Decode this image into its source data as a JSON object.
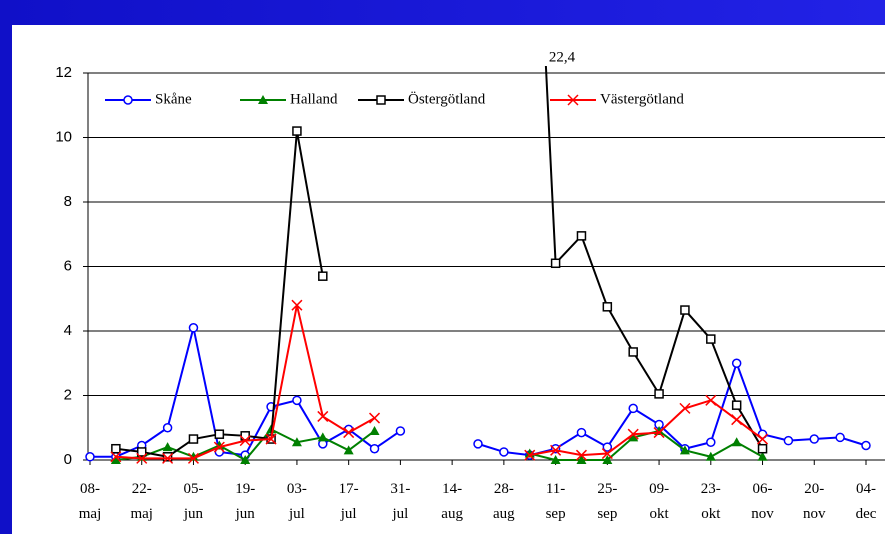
{
  "chart_data": {
    "type": "line",
    "annotation": "22,4",
    "categories": [
      "08-\nmaj",
      null,
      "22-\nmaj",
      null,
      "05-\njun",
      null,
      "19-\njun",
      null,
      "03-\njul",
      null,
      "17-\njul",
      null,
      "31-\njul",
      null,
      "14-\naug",
      null,
      "28-\naug",
      null,
      "11-\nsep",
      null,
      "25-\nsep",
      null,
      "09-\nokt",
      null,
      "23-\nokt",
      null,
      "06-\nnov",
      null,
      "20-\nnov",
      null,
      "04-\ndec"
    ],
    "series": [
      {
        "name": "Skåne",
        "color": "#0000ff",
        "marker": "circle",
        "values": [
          0.1,
          0.1,
          0.45,
          1.0,
          4.1,
          0.25,
          0.15,
          1.65,
          1.85,
          0.5,
          0.95,
          0.35,
          0.9,
          null,
          null,
          0.5,
          0.25,
          0.15,
          0.35,
          0.85,
          0.4,
          1.6,
          1.1,
          0.35,
          0.55,
          3.0,
          0.8,
          0.6,
          0.65,
          0.7,
          0.45
        ]
      },
      {
        "name": "Halland",
        "color": "#008000",
        "marker": "triangle",
        "values": [
          null,
          0.0,
          0.1,
          0.4,
          0.1,
          0.45,
          0.0,
          0.95,
          0.55,
          0.7,
          0.3,
          0.9,
          null,
          null,
          null,
          null,
          null,
          0.2,
          0.0,
          0.0,
          0.0,
          0.7,
          0.9,
          0.3,
          0.1,
          0.55,
          0.1,
          null,
          null,
          null,
          null
        ]
      },
      {
        "name": "Östergötland",
        "color": "#000000",
        "marker": "square",
        "values": [
          null,
          0.35,
          0.25,
          0.1,
          0.65,
          0.8,
          0.75,
          0.65,
          10.2,
          5.7,
          null,
          null,
          null,
          null,
          null,
          null,
          null,
          22.4,
          6.1,
          6.95,
          4.75,
          3.35,
          2.05,
          4.65,
          3.75,
          1.7,
          0.35,
          null,
          null,
          null,
          null
        ]
      },
      {
        "name": "Västergötland",
        "color": "#ff0000",
        "marker": "x",
        "values": [
          null,
          0.1,
          0.05,
          0.05,
          0.05,
          0.4,
          0.6,
          0.65,
          4.8,
          1.35,
          0.85,
          1.3,
          null,
          null,
          null,
          null,
          null,
          0.15,
          0.3,
          0.15,
          0.2,
          0.8,
          0.85,
          1.6,
          1.85,
          1.25,
          0.65,
          null,
          null,
          null,
          null
        ]
      }
    ],
    "ylim": [
      0,
      12
    ],
    "yticks": [
      0,
      2,
      4,
      6,
      8,
      10,
      12
    ],
    "grid": true,
    "legend": "top"
  }
}
